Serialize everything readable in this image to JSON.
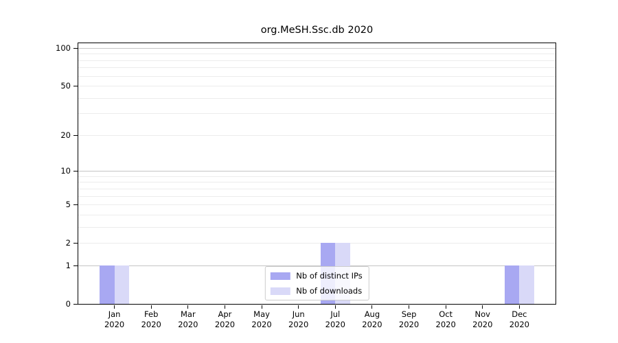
{
  "chart_data": {
    "type": "bar",
    "title": "org.MeSH.Ssc.db 2020",
    "categories": [
      {
        "month": "Jan",
        "year": "2020"
      },
      {
        "month": "Feb",
        "year": "2020"
      },
      {
        "month": "Mar",
        "year": "2020"
      },
      {
        "month": "Apr",
        "year": "2020"
      },
      {
        "month": "May",
        "year": "2020"
      },
      {
        "month": "Jun",
        "year": "2020"
      },
      {
        "month": "Jul",
        "year": "2020"
      },
      {
        "month": "Aug",
        "year": "2020"
      },
      {
        "month": "Sep",
        "year": "2020"
      },
      {
        "month": "Oct",
        "year": "2020"
      },
      {
        "month": "Nov",
        "year": "2020"
      },
      {
        "month": "Dec",
        "year": "2020"
      }
    ],
    "series": [
      {
        "name": "Nb of distinct IPs",
        "color": "#a8a8f2",
        "values": [
          1,
          0,
          0,
          0,
          0,
          0,
          2,
          0,
          0,
          0,
          0,
          1
        ]
      },
      {
        "name": "Nb of downloads",
        "color": "#d9d9f8",
        "values": [
          1,
          0,
          0,
          0,
          0,
          0,
          2,
          0,
          0,
          0,
          0,
          1
        ]
      }
    ],
    "yscale": "log1p",
    "ylim": [
      0,
      112
    ],
    "yticks": [
      0,
      1,
      2,
      5,
      10,
      20,
      50,
      100
    ],
    "major_gridlines": [
      1,
      10,
      100
    ],
    "minor_gridlines": [
      2,
      3,
      4,
      5,
      6,
      7,
      8,
      9,
      20,
      30,
      40,
      50,
      60,
      70,
      80,
      90
    ],
    "grid": "horizontal",
    "legend_position": "lower center"
  },
  "colors": {
    "major_grid": "#c5c5c5",
    "minor_grid": "#ececec",
    "spine": "#000000",
    "legend_border": "#cccccc",
    "text": "#000000"
  }
}
